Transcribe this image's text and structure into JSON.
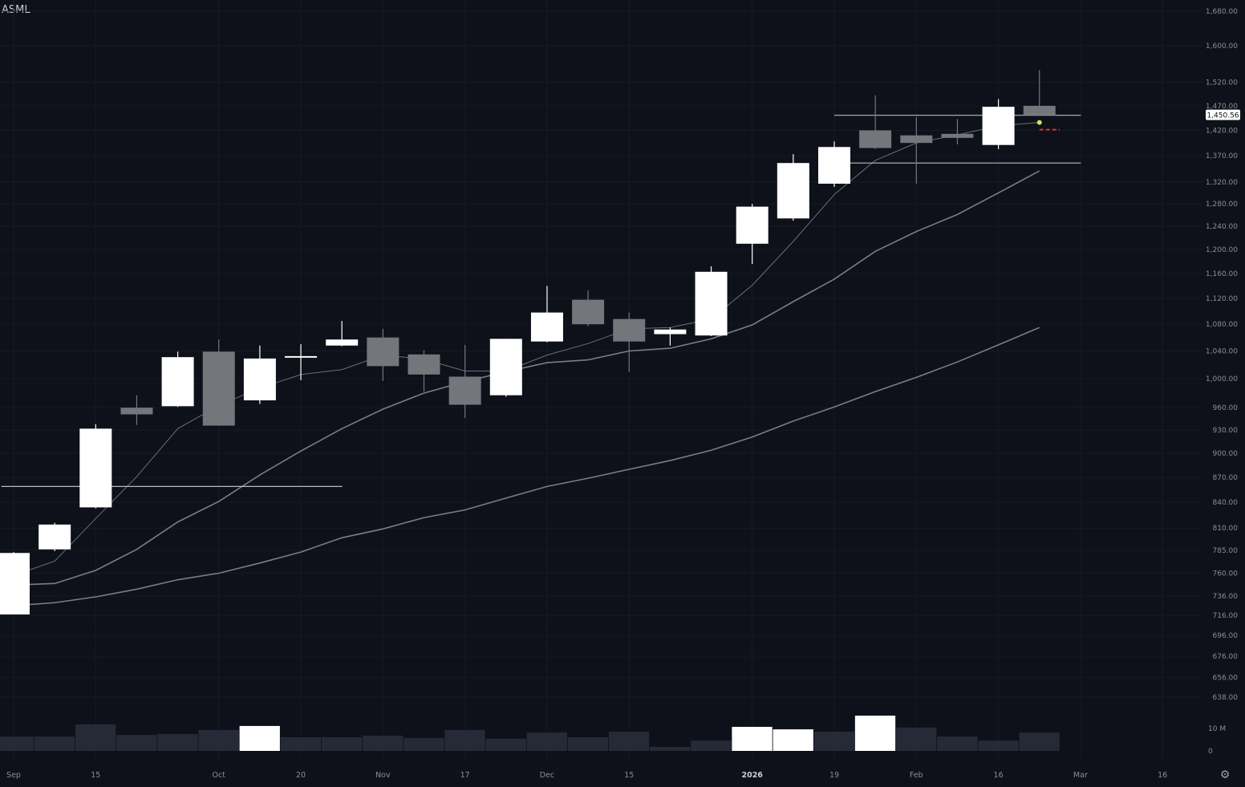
{
  "symbol": "ASML",
  "settings_icon": "gear-icon",
  "chart_data": {
    "type": "candlestick",
    "title": "ASML",
    "interval": "weekly",
    "y_scale": "log",
    "ylim": [
      638,
      1680
    ],
    "grid": true,
    "y_ticks": [
      1680,
      1600,
      1520,
      1470,
      1420,
      1370,
      1320,
      1280,
      1240,
      1200,
      1160,
      1120,
      1080,
      1040,
      1000,
      960,
      930,
      900,
      870,
      840,
      810,
      785,
      760,
      736,
      716,
      696,
      676,
      656,
      638
    ],
    "y_tick_labels": [
      "1,680.00",
      "1,600.00",
      "1,520.00",
      "1,470.00",
      "1,420.00",
      "1,370.00",
      "1,320.00",
      "1,280.00",
      "1,240.00",
      "1,200.00",
      "1,160.00",
      "1,120.00",
      "1,080.00",
      "1,040.00",
      "1,000.00",
      "960.00",
      "930.00",
      "900.00",
      "870.00",
      "840.00",
      "810.00",
      "785.00",
      "760.00",
      "736.00",
      "716.00",
      "696.00",
      "676.00",
      "656.00",
      "638.00"
    ],
    "x_tick_labels": [
      {
        "label": "Sep",
        "bar": 0
      },
      {
        "label": "15",
        "bar": 2
      },
      {
        "label": "Oct",
        "bar": 5
      },
      {
        "label": "20",
        "bar": 7
      },
      {
        "label": "Nov",
        "bar": 9
      },
      {
        "label": "17",
        "bar": 11
      },
      {
        "label": "Dec",
        "bar": 13
      },
      {
        "label": "15",
        "bar": 15
      },
      {
        "label": "2026",
        "bar": 18,
        "bold": true
      },
      {
        "label": "19",
        "bar": 20
      },
      {
        "label": "Feb",
        "bar": 22
      },
      {
        "label": "16",
        "bar": 24
      },
      {
        "label": "Mar",
        "bar": 26
      },
      {
        "label": "16",
        "bar": 28
      }
    ],
    "candles": [
      {
        "o": 717,
        "h": 783,
        "l": 717,
        "c": 782
      },
      {
        "o": 786,
        "h": 816,
        "l": 784,
        "c": 814
      },
      {
        "o": 834,
        "h": 938,
        "l": 833,
        "c": 932
      },
      {
        "o": 960,
        "h": 977,
        "l": 937,
        "c": 951
      },
      {
        "o": 962,
        "h": 1039,
        "l": 961,
        "c": 1031
      },
      {
        "o": 1039,
        "h": 1057,
        "l": 936,
        "c": 936
      },
      {
        "o": 970,
        "h": 1048,
        "l": 965,
        "c": 1029
      },
      {
        "o": 1032,
        "h": 1050,
        "l": 998,
        "c": 1032.5
      },
      {
        "o": 1048,
        "h": 1085,
        "l": 1047,
        "c": 1057
      },
      {
        "o": 1060,
        "h": 1073,
        "l": 997,
        "c": 1018
      },
      {
        "o": 1035,
        "h": 1041,
        "l": 982,
        "c": 1006
      },
      {
        "o": 1003,
        "h": 1049,
        "l": 946,
        "c": 964
      },
      {
        "o": 977,
        "h": 1058,
        "l": 975,
        "c": 1058
      },
      {
        "o": 1054,
        "h": 1140,
        "l": 1053,
        "c": 1098
      },
      {
        "o": 1118,
        "h": 1133,
        "l": 1077,
        "c": 1080
      },
      {
        "o": 1088,
        "h": 1098,
        "l": 1010,
        "c": 1054
      },
      {
        "o": 1065,
        "h": 1075,
        "l": 1048,
        "c": 1072
      },
      {
        "o": 1063,
        "h": 1172,
        "l": 1062,
        "c": 1163
      },
      {
        "o": 1210,
        "h": 1280,
        "l": 1176,
        "c": 1275
      },
      {
        "o": 1254,
        "h": 1373,
        "l": 1250,
        "c": 1356
      },
      {
        "o": 1317,
        "h": 1398,
        "l": 1311,
        "c": 1387
      },
      {
        "o": 1420,
        "h": 1492,
        "l": 1383,
        "c": 1385
      },
      {
        "o": 1410,
        "h": 1447,
        "l": 1317,
        "c": 1395
      },
      {
        "o": 1413,
        "h": 1443,
        "l": 1392,
        "c": 1405
      },
      {
        "o": 1391,
        "h": 1484,
        "l": 1383,
        "c": 1468
      },
      {
        "o": 1470,
        "h": 1546,
        "l": 1449,
        "c": 1450.56
      }
    ],
    "volume": {
      "unit": "M",
      "ticks": [
        {
          "value": 10,
          "label": "10 M"
        },
        {
          "value": 0,
          "label": "0"
        }
      ],
      "values": [
        6.4,
        6.4,
        11.8,
        7.1,
        7.5,
        9.3,
        11.1,
        6.1,
        6.1,
        6.8,
        5.7,
        9.3,
        5.4,
        8.2,
        6.1,
        8.6,
        1.8,
        4.6,
        10.7,
        9.6,
        8.6,
        15.7,
        10.4,
        6.4,
        4.6,
        8.2
      ],
      "highlighted": [
        6,
        18,
        19,
        21
      ]
    },
    "moving_averages": [
      {
        "values": [
          763,
          773,
          821,
          871,
          932,
          963,
          987,
          1006,
          1013,
          1034,
          1028,
          1011,
          1011,
          1034,
          1051,
          1073,
          1075,
          1088,
          1141,
          1214,
          1297,
          1361,
          1395,
          1411,
          1429,
          1436
        ],
        "color": "#6b6e76"
      },
      {
        "values": [
          748,
          749,
          763,
          786,
          817,
          841,
          873,
          903,
          932,
          958,
          980,
          996,
          1010,
          1023,
          1027,
          1040,
          1044,
          1058,
          1079,
          1115,
          1151,
          1197,
          1231,
          1261,
          1300,
          1341
        ],
        "color": "#7a7d85"
      },
      {
        "values": [
          727,
          729,
          735,
          743,
          753,
          760,
          771,
          783,
          799,
          809,
          822,
          831,
          845,
          859,
          869,
          880,
          891,
          904,
          921,
          942,
          961,
          982,
          1002,
          1024,
          1049,
          1075
        ],
        "color": "#7a7d85"
      }
    ],
    "horizontal_lines": [
      {
        "price": 1450.56,
        "from_bar": 20,
        "to_bar": 26
      },
      {
        "price": 1356,
        "from_bar": 20,
        "to_bar": 26
      },
      {
        "price": 859,
        "from_bar": -0.3,
        "to_bar": 8
      }
    ],
    "last_price": {
      "value": 1450.56,
      "label": "1,450.56"
    },
    "marker": {
      "price": 1436,
      "bar": 25,
      "color": "#b8f060"
    },
    "colors": {
      "up": "#ffffff",
      "down": "#74767c",
      "background": "#0e1119",
      "volume": "#262a36",
      "dashed": "#e03030"
    }
  }
}
